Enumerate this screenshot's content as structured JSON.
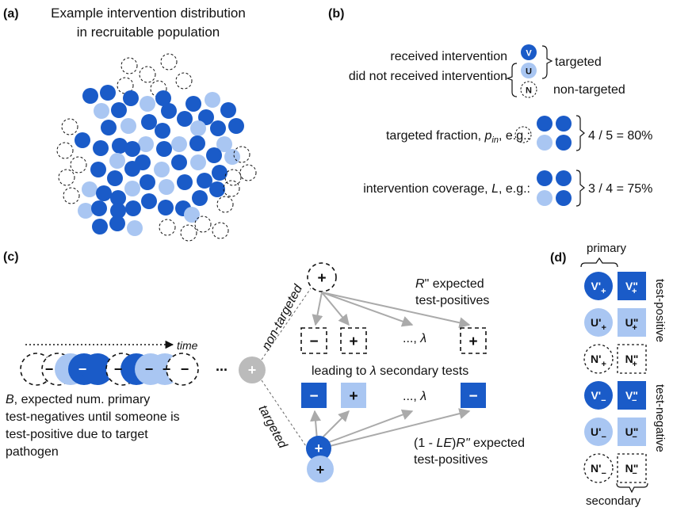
{
  "panel_a": {
    "label": "(a)",
    "title_line1": "Example intervention distribution",
    "title_line2": "in recruitable population"
  },
  "panel_b": {
    "label": "(b)",
    "received": "received intervention",
    "not_received": "did not received intervention",
    "targeted": "targeted",
    "non_targeted": "non-targeted",
    "badge_v": "V",
    "badge_u": "U",
    "badge_n": "N",
    "targeted_fraction_prefix": "targeted fraction, ",
    "p_symbol": "p",
    "p_sub": "in",
    "eg": ", e.g.:",
    "targeted_fraction_result": "4 / 5 = 80%",
    "coverage_prefix": "intervention coverage, ",
    "l_symbol": "L",
    "coverage_result": "3 / 4 = 75%"
  },
  "panel_c": {
    "label": "(c)",
    "time": "time",
    "b_text_line1": "B, expected num. primary",
    "b_text_line2": "test-negatives until someone is",
    "b_text_line3": "test-positive due to target",
    "b_text_line4": "pathogen",
    "ellipsis": "...",
    "non_targeted": "non-targeted",
    "targeted": "targeted",
    "r_expected_line1": "R\" expected",
    "r_expected_line2": "test-positives",
    "lambda_dots": "..., λ",
    "leading_to": "leading to λ secondary tests",
    "le_line1": "(1 - LE)R\" expected",
    "le_line2": "test-positives",
    "plus": "+",
    "minus": "−"
  },
  "panel_d": {
    "label": "(d)",
    "primary": "primary",
    "secondary": "secondary",
    "test_positive": "test-positive",
    "test_negative": "test-negative",
    "v_primary": "V'",
    "u_primary": "U'",
    "n_primary": "N'",
    "v_secondary": "V\"",
    "u_secondary": "U\"",
    "n_secondary": "N\""
  },
  "colors": {
    "dark_blue": "#1a5bc8",
    "light_blue": "#a9c6f2",
    "gray": "#bbbbbb",
    "arrow": "#aaaaaa"
  }
}
